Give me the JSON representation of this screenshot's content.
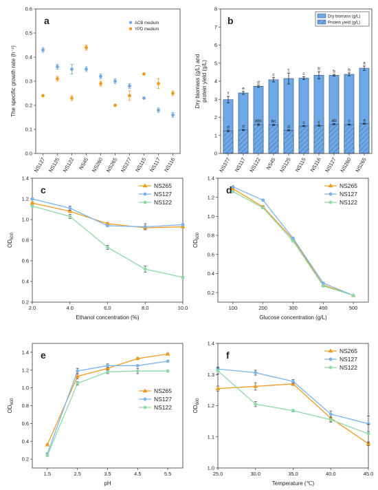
{
  "chart_data": [
    {
      "panel": "a",
      "type": "scatter",
      "categories": [
        "NS127",
        "NS125",
        "NS122",
        "NS45",
        "NS260",
        "NS265",
        "NS377",
        "NS115",
        "NS117",
        "NS116"
      ],
      "ylabel": "The specific growth rate (h⁻¹)",
      "ylim": [
        0.0,
        0.6
      ],
      "yticks": [
        "0.0",
        "0.1",
        "0.2",
        "0.3",
        "0.4",
        "0.5",
        "0.6"
      ],
      "legend_position": "top-right",
      "series": [
        {
          "name": "ACB medium",
          "color": "#6fa8e6",
          "values": [
            0.43,
            0.36,
            0.35,
            0.35,
            0.32,
            0.3,
            0.28,
            0.23,
            0.18,
            0.16
          ],
          "errors": [
            0.01,
            0.01,
            0.02,
            0.01,
            0.01,
            0.01,
            0.01,
            0.003,
            0.01,
            0.01
          ]
        },
        {
          "name": "YPD medium",
          "color": "#f29a1f",
          "values": [
            0.24,
            0.31,
            0.23,
            0.44,
            0.29,
            0.2,
            0.24,
            0.33,
            0.29,
            0.25
          ],
          "errors": [
            0.003,
            0.01,
            0.01,
            0.01,
            0.01,
            0.003,
            0.02,
            0.003,
            0.02,
            0.01
          ]
        }
      ]
    },
    {
      "panel": "b",
      "type": "bar",
      "categories": [
        "NS377",
        "NS117",
        "NS122",
        "NS45",
        "NS125",
        "NS115",
        "NS116",
        "NS127",
        "NS260",
        "NS265"
      ],
      "ylabel": "Dry biomass (g/L) and protein yield (g/L)",
      "ylim": [
        0,
        8
      ],
      "yticks": [
        "0",
        "1",
        "2",
        "3",
        "4",
        "5",
        "6",
        "7",
        "8"
      ],
      "legend_position": "top-right",
      "series": [
        {
          "name": "Dry biomass (g/L)",
          "color": "#6fa8e6",
          "values": [
            2.98,
            3.35,
            3.72,
            4.08,
            4.15,
            4.17,
            4.33,
            4.33,
            4.38,
            4.72
          ],
          "errors": [
            0.18,
            0.08,
            0.06,
            0.12,
            0.3,
            0.08,
            0.2,
            0.05,
            0.08,
            0.12
          ],
          "letters": [
            "f",
            "e",
            "d",
            "c",
            "c",
            "c",
            "b",
            "b",
            "b",
            "a"
          ]
        },
        {
          "name": "Protein yield (g/L)",
          "color": "#6fa8e6",
          "pattern": "hatch",
          "values": [
            1.25,
            1.3,
            1.6,
            1.58,
            1.28,
            1.52,
            1.55,
            1.62,
            1.6,
            1.65
          ],
          "errors": [
            0.04,
            0.03,
            0.04,
            0.03,
            0.03,
            0.03,
            0.04,
            0.03,
            0.03,
            0.03
          ],
          "letters": [
            "d",
            "d",
            "abc",
            "bc",
            "d",
            "c",
            "c",
            "ab",
            "c",
            "a"
          ]
        }
      ]
    },
    {
      "panel": "c",
      "type": "line",
      "x": [
        2.0,
        4.0,
        6.0,
        8.0,
        10.0
      ],
      "xticks": [
        "2.0",
        "4.0",
        "6.0",
        "8.0",
        "10.0"
      ],
      "xlabel": "Ethanol concentration (%)",
      "ylabel": "OD600",
      "xlim": [
        2.0,
        10.0
      ],
      "ylim": [
        0.2,
        1.4
      ],
      "yticks": [
        "0.2",
        "0.4",
        "0.6",
        "0.8",
        "1.0",
        "1.2",
        "1.4"
      ],
      "legend_position": "top-right",
      "series": [
        {
          "name": "NS265",
          "color": "#f29a1f",
          "marker": "^",
          "values": [
            1.16,
            1.08,
            0.96,
            0.92,
            0.93
          ],
          "errors": [
            0.01,
            0.01,
            0.01,
            0.01,
            0.01
          ]
        },
        {
          "name": "NS127",
          "color": "#7ab3ee",
          "marker": "o",
          "values": [
            1.2,
            1.11,
            0.94,
            0.93,
            0.95
          ],
          "errors": [
            0.01,
            0.02,
            0.01,
            0.03,
            0.01
          ]
        },
        {
          "name": "NS122",
          "color": "#8ed9a6",
          "marker": "o",
          "values": [
            1.13,
            1.03,
            0.73,
            0.52,
            0.44
          ],
          "errors": [
            0.01,
            0.02,
            0.02,
            0.03,
            0.01
          ]
        }
      ]
    },
    {
      "panel": "d",
      "type": "line",
      "x": [
        100,
        200,
        300,
        400,
        500
      ],
      "xticks": [
        "100",
        "200",
        "300",
        "400",
        "500"
      ],
      "xlabel": "Glucose concentration (g/L)",
      "ylabel": "OD600",
      "xlim": [
        50,
        550
      ],
      "ylim": [
        0.1,
        1.4
      ],
      "yticks": [
        "0.2",
        "0.4",
        "0.6",
        "0.8",
        "1.0",
        "1.2",
        "1.4"
      ],
      "legend_position": "top-right",
      "series": [
        {
          "name": "NS265",
          "color": "#f29a1f",
          "marker": "^",
          "values": [
            1.29,
            1.1,
            0.76,
            0.28,
            0.17
          ],
          "errors": [
            0.01,
            0.01,
            0.01,
            0.01,
            0.003
          ]
        },
        {
          "name": "NS127",
          "color": "#7ab3ee",
          "marker": "o",
          "values": [
            1.31,
            1.17,
            0.77,
            0.3,
            0.17
          ],
          "errors": [
            0.01,
            0.01,
            0.01,
            0.01,
            0.003
          ]
        },
        {
          "name": "NS122",
          "color": "#8ed9a6",
          "marker": "o",
          "values": [
            1.26,
            1.09,
            0.74,
            0.27,
            0.17
          ],
          "errors": [
            0.01,
            0.01,
            0.01,
            0.01,
            0.003
          ]
        }
      ]
    },
    {
      "panel": "e",
      "type": "line",
      "x": [
        1.5,
        2.5,
        3.5,
        4.5,
        5.5
      ],
      "xticks": [
        "1.5",
        "2.5",
        "3.5",
        "4.5",
        "5.5"
      ],
      "xlabel": "pH",
      "ylabel": "OD600",
      "xlim": [
        1.0,
        6.0
      ],
      "ylim": [
        0.1,
        1.5
      ],
      "yticks": [
        "0.2",
        "0.4",
        "0.6",
        "0.8",
        "1.0",
        "1.2",
        "1.4"
      ],
      "legend_position": "center-right",
      "series": [
        {
          "name": "NS265",
          "color": "#f29a1f",
          "marker": "^",
          "values": [
            0.36,
            1.13,
            1.22,
            1.33,
            1.38
          ],
          "errors": [
            0.01,
            0.03,
            0.03,
            0.01,
            0.01
          ]
        },
        {
          "name": "NS127",
          "color": "#7ab3ee",
          "marker": "o",
          "values": [
            0.26,
            1.19,
            1.25,
            1.25,
            1.3
          ],
          "errors": [
            0.01,
            0.03,
            0.02,
            0.01,
            0.01
          ]
        },
        {
          "name": "NS122",
          "color": "#8ed9a6",
          "marker": "o",
          "values": [
            0.24,
            1.05,
            1.18,
            1.19,
            1.19
          ],
          "errors": [
            0.01,
            0.02,
            0.02,
            0.03,
            0.01
          ]
        }
      ]
    },
    {
      "panel": "f",
      "type": "line",
      "x": [
        25.0,
        30.0,
        35.0,
        40.0,
        45.0
      ],
      "xticks": [
        "25.0",
        "30.0",
        "35.0",
        "40.0",
        "45.0"
      ],
      "xlabel": "Temperature (℃)",
      "ylabel": "OD600",
      "xlim": [
        25.0,
        45.0
      ],
      "ylim": [
        1.0,
        1.4
      ],
      "yticks": [
        "1.0",
        "1.1",
        "1.2",
        "1.3",
        "1.4"
      ],
      "legend_position": "top-right",
      "series": [
        {
          "name": "NS265",
          "color": "#f29a1f",
          "marker": "^",
          "values": [
            1.255,
            1.262,
            1.27,
            1.16,
            1.078
          ],
          "errors": [
            0.008,
            0.012,
            0.005,
            0.01,
            0.006
          ]
        },
        {
          "name": "NS127",
          "color": "#7ab3ee",
          "marker": "o",
          "values": [
            1.318,
            1.306,
            1.278,
            1.173,
            1.142
          ],
          "errors": [
            0.006,
            0.008,
            0.006,
            0.01,
            0.025
          ]
        },
        {
          "name": "NS122",
          "color": "#8ed9a6",
          "marker": "o",
          "values": [
            1.312,
            1.205,
            1.184,
            1.155,
            1.11
          ],
          "errors": [
            0.01,
            0.008,
            0.004,
            0.008,
            0.03
          ]
        }
      ]
    }
  ]
}
